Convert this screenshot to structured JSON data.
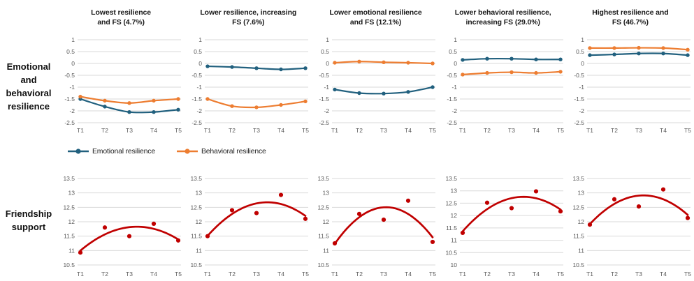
{
  "colors": {
    "emotional": "#21607E",
    "behavioral": "#ED7D31",
    "friendship": "#C00000",
    "gridline": "#D9D9D9",
    "tick_text": "#595959",
    "title_text": "#1A1A1A"
  },
  "row_labels": {
    "top": "Emotional\nand\nbehavioral\nresilience",
    "bottom": "Friendship\nsupport"
  },
  "legend": {
    "items": [
      {
        "label": "Emotional resilience",
        "color": "#21607E"
      },
      {
        "label": "Behavioral resilience",
        "color": "#ED7D31"
      }
    ]
  },
  "chart_data": {
    "x_labels": [
      "T1",
      "T2",
      "T3",
      "T4",
      "T5"
    ],
    "top_row": {
      "type": "line",
      "yticks": [
        "1",
        "0.5",
        "0",
        "-0.5",
        "-1",
        "-1.5",
        "-2",
        "-2.5"
      ],
      "ylim": [
        -2.5,
        1
      ],
      "charts": [
        {
          "title": "Lowest resilience and FS (4.7%)",
          "title_lines": [
            "Lowest resilience",
            "and FS (4.7%)"
          ],
          "series": [
            {
              "name": "Emotional resilience",
              "values": [
                -1.5,
                -1.82,
                -2.05,
                -2.05,
                -1.95
              ]
            },
            {
              "name": "Behavioral resilience",
              "values": [
                -1.4,
                -1.57,
                -1.67,
                -1.57,
                -1.5
              ]
            }
          ]
        },
        {
          "title": "Lower resilience,  increasing FS (7.6%)",
          "title_lines": [
            "Lower resilience,  increasing",
            "FS (7.6%)"
          ],
          "series": [
            {
              "name": "Emotional resilience",
              "values": [
                -0.12,
                -0.15,
                -0.2,
                -0.25,
                -0.2
              ]
            },
            {
              "name": "Behavioral resilience",
              "values": [
                -1.5,
                -1.8,
                -1.85,
                -1.75,
                -1.6
              ]
            }
          ]
        },
        {
          "title": "Lower emotional resilience and  FS (12.1%)",
          "title_lines": [
            "Lower emotional resilience",
            "and  FS (12.1%)"
          ],
          "series": [
            {
              "name": "Emotional resilience",
              "values": [
                -1.1,
                -1.25,
                -1.27,
                -1.2,
                -1.0
              ]
            },
            {
              "name": "Behavioral resilience",
              "values": [
                0.03,
                0.08,
                0.05,
                0.03,
                0.0
              ]
            }
          ]
        },
        {
          "title": "Lower behavioral resilience, increasing FS (29.0%)",
          "title_lines": [
            "Lower behavioral resilience,",
            "increasing FS (29.0%)"
          ],
          "series": [
            {
              "name": "Emotional resilience",
              "values": [
                0.15,
                0.2,
                0.2,
                0.17,
                0.17
              ]
            },
            {
              "name": "Behavioral resilience",
              "values": [
                -0.47,
                -0.4,
                -0.37,
                -0.4,
                -0.35
              ]
            }
          ]
        },
        {
          "title": "Highest resilience and FS (46.7%)",
          "title_lines": [
            "Highest resilience and",
            "FS (46.7%)"
          ],
          "series": [
            {
              "name": "Emotional resilience",
              "values": [
                0.35,
                0.38,
                0.42,
                0.42,
                0.35
              ]
            },
            {
              "name": "Behavioral resilience",
              "values": [
                0.65,
                0.65,
                0.66,
                0.65,
                0.58
              ]
            }
          ]
        }
      ]
    },
    "bottom_row": {
      "type": "scatter",
      "trendline": "quadratic",
      "series_name": "Friendship support",
      "charts": [
        {
          "yticks": [
            "13.5",
            "13",
            "12.5",
            "12",
            "11.5",
            "11",
            "10.5"
          ],
          "values": [
            10.93,
            11.8,
            11.5,
            11.93,
            11.35
          ]
        },
        {
          "yticks": [
            "13.5",
            "13",
            "12.5",
            "12",
            "11.5",
            "11",
            "10.5"
          ],
          "values": [
            11.5,
            12.4,
            12.3,
            12.93,
            12.1
          ]
        },
        {
          "yticks": [
            "13.5",
            "13",
            "12.5",
            "12",
            "11.5",
            "11",
            "10.5"
          ],
          "values": [
            11.25,
            12.27,
            12.07,
            12.73,
            11.3
          ]
        },
        {
          "yticks": [
            "13.5",
            "13",
            "12.5",
            "12",
            "11.5",
            "11",
            "10.5",
            "10"
          ],
          "values": [
            11.3,
            12.52,
            12.3,
            12.98,
            12.17
          ]
        },
        {
          "yticks": [
            "13.5",
            "13",
            "12.5",
            "12",
            "11.5",
            "11",
            "10.5"
          ],
          "values": [
            11.9,
            12.78,
            12.53,
            13.12,
            12.13
          ]
        }
      ]
    }
  }
}
